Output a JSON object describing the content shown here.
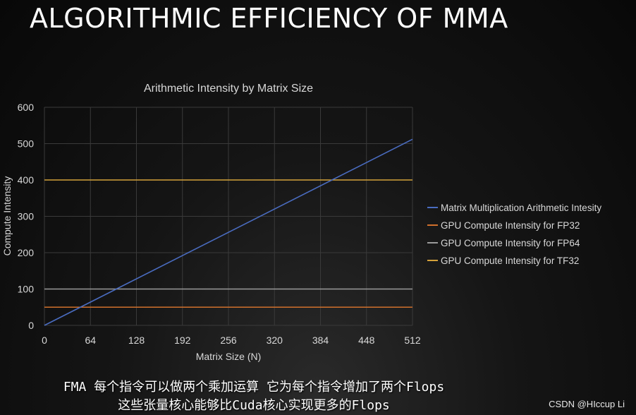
{
  "slide": {
    "title": "ALGORITHMIC EFFICIENCY OF MMA"
  },
  "chart_data": {
    "type": "line",
    "title": "Arithmetic Intensity by Matrix Size",
    "xlabel": "Matrix Size (N)",
    "ylabel": "Compute Intensity",
    "xlim": [
      0,
      512
    ],
    "ylim": [
      0,
      600
    ],
    "xticks": [
      0,
      64,
      128,
      192,
      256,
      320,
      384,
      448,
      512
    ],
    "yticks": [
      0,
      100,
      200,
      300,
      400,
      500,
      600
    ],
    "grid": true,
    "legend_position": "right",
    "series": [
      {
        "name": "Matrix Multiplication Arithmetic Intesity",
        "color": "#4a6cc0",
        "x": [
          0,
          512
        ],
        "y": [
          0,
          512
        ]
      },
      {
        "name": "GPU Compute Intensity for FP32",
        "color": "#d0702c",
        "x": [
          0,
          512
        ],
        "y": [
          50,
          50
        ]
      },
      {
        "name": "GPU Compute Intensity for FP64",
        "color": "#9a9a9a",
        "x": [
          0,
          512
        ],
        "y": [
          100,
          100
        ]
      },
      {
        "name": "GPU Compute Intensity for TF32",
        "color": "#d4a23a",
        "x": [
          0,
          512
        ],
        "y": [
          400,
          400
        ]
      }
    ]
  },
  "subtitles": {
    "line1": "FMA 每个指令可以做两个乘加运算 它为每个指令增加了两个Flops",
    "line2": "这些张量核心能够比Cuda核心实现更多的Flops"
  },
  "watermark": "CSDN @HIccup Li",
  "colors": {
    "background": "#0d0d0d",
    "grid": "#3a3a3a",
    "text": "#d8d8d8"
  }
}
